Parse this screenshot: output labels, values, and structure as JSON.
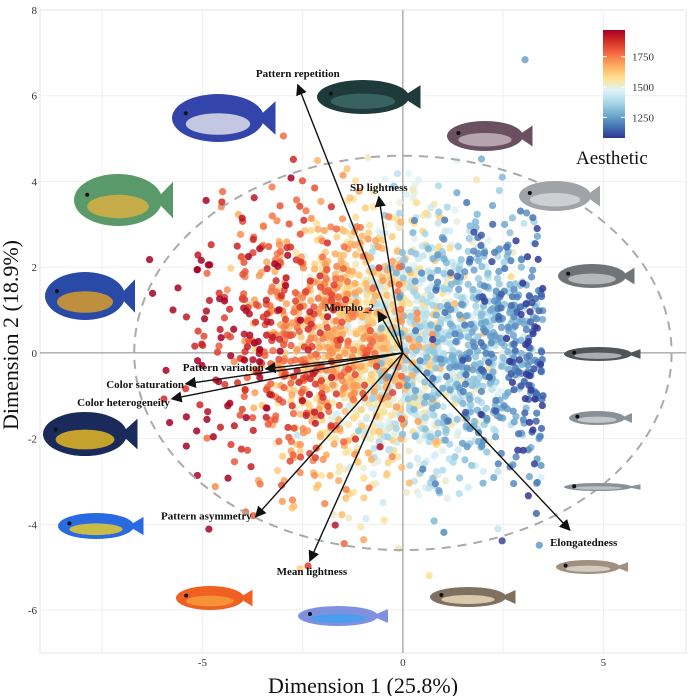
{
  "chart_data": {
    "type": "scatter",
    "subtype": "PCA biplot",
    "xlabel": "Dimension 1 (25.8%)",
    "ylabel": "Dimension 2 (18.9%)",
    "xlim": [
      -9.05,
      7.06
    ],
    "ylim": [
      -7.0,
      8.0
    ],
    "x_ticks": [
      -5,
      0,
      5
    ],
    "y_ticks": [
      -6,
      -4,
      -2,
      0,
      2,
      4,
      6,
      8
    ],
    "grid": true,
    "colorbar": {
      "title": "Aesthetic",
      "range": [
        1080,
        1970
      ],
      "ticks": [
        1250,
        1500,
        1750
      ],
      "colors": [
        "#313695",
        "#4575b4",
        "#74add1",
        "#abd9e9",
        "#e0f3f8",
        "#fee090",
        "#fdae61",
        "#f46d43",
        "#d73027",
        "#a50026"
      ],
      "placement": "top-right"
    },
    "correlation_circle": {
      "rx": 6.7,
      "ry": 4.6
    },
    "point_cloud": {
      "n": 2600,
      "center": [
        -0.3,
        0.2
      ],
      "sd": [
        2.0,
        1.55
      ],
      "aesthetic_mean": 1500,
      "aesthetic_slope_per_dim1": -90,
      "aesthetic_noise_sd": 110
    },
    "vectors": [
      {
        "label": "Pattern repetition",
        "x": -2.62,
        "y": 6.25
      },
      {
        "label": "SD lightness",
        "x": -0.6,
        "y": 3.64
      },
      {
        "label": "Morpho_2",
        "x": -0.62,
        "y": 0.96
      },
      {
        "label": "Pattern variation",
        "x": -3.42,
        "y": -0.37
      },
      {
        "label": "Color saturation",
        "x": -5.41,
        "y": -0.72
      },
      {
        "label": "Color heterogeneity",
        "x": -5.76,
        "y": -1.07
      },
      {
        "label": "Pattern asymmetry",
        "x": -3.67,
        "y": -3.82
      },
      {
        "label": "Mean lightness",
        "x": -2.32,
        "y": -4.85
      },
      {
        "label": "Elongatedness",
        "x": 4.16,
        "y": -4.13
      }
    ]
  }
}
